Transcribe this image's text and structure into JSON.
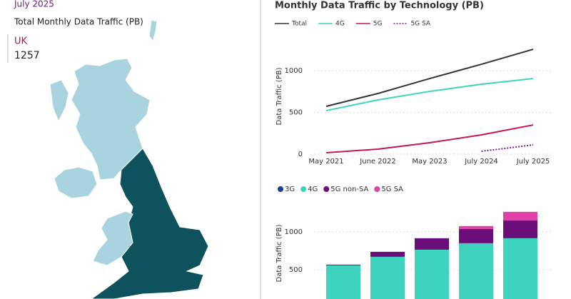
{
  "map_panel": {
    "date": "July 2025",
    "title": "Total Monthly Data Traffic (PB)",
    "region": "UK",
    "value": 1257
  },
  "chart_data": [
    {
      "type": "line",
      "title": "Monthly Data Traffic by Technology (PB)",
      "ylabel": "Data Traffic (PB)",
      "categories": [
        "May 2021",
        "June 2022",
        "May 2023",
        "July 2024",
        "July 2025"
      ],
      "ylim": [
        0,
        1300
      ],
      "yticks": [
        0,
        500,
        1000
      ],
      "grid": true,
      "series": [
        {
          "name": "Total",
          "color": "#333333",
          "line_style": "solid",
          "values": [
            573,
            727,
            906,
            1077,
            1257
          ]
        },
        {
          "name": "4G",
          "color": "#3dd3bd",
          "line_style": "solid",
          "values": [
            521,
            650,
            752,
            838,
            906
          ]
        },
        {
          "name": "5G",
          "color": "#c2185b",
          "line_style": "solid",
          "values": [
            17,
            60,
            137,
            231,
            350
          ]
        },
        {
          "name": "5G SA",
          "color": "#7b1fa2",
          "line_style": "dotted",
          "values": [
            null,
            null,
            null,
            34,
            111
          ]
        }
      ]
    },
    {
      "type": "stacked_bar",
      "ylabel": "Data Traffic (PB)",
      "ylim": [
        0,
        1300
      ],
      "yticks": [
        500,
        1000
      ],
      "grid": true,
      "series": [
        {
          "name": "3G",
          "color": "#1a3a9e",
          "values": [
            0,
            0,
            0,
            0,
            0
          ]
        },
        {
          "name": "4G",
          "color": "#3dd3bd",
          "values": [
            557,
            670,
            764,
            849,
            915
          ]
        },
        {
          "name": "5G non-SA",
          "color": "#6a0f7a",
          "values": [
            10,
            66,
            151,
            189,
            236
          ]
        },
        {
          "name": "5G SA",
          "color": "#e040a8",
          "values": [
            0,
            0,
            0,
            38,
            113
          ]
        }
      ]
    }
  ]
}
